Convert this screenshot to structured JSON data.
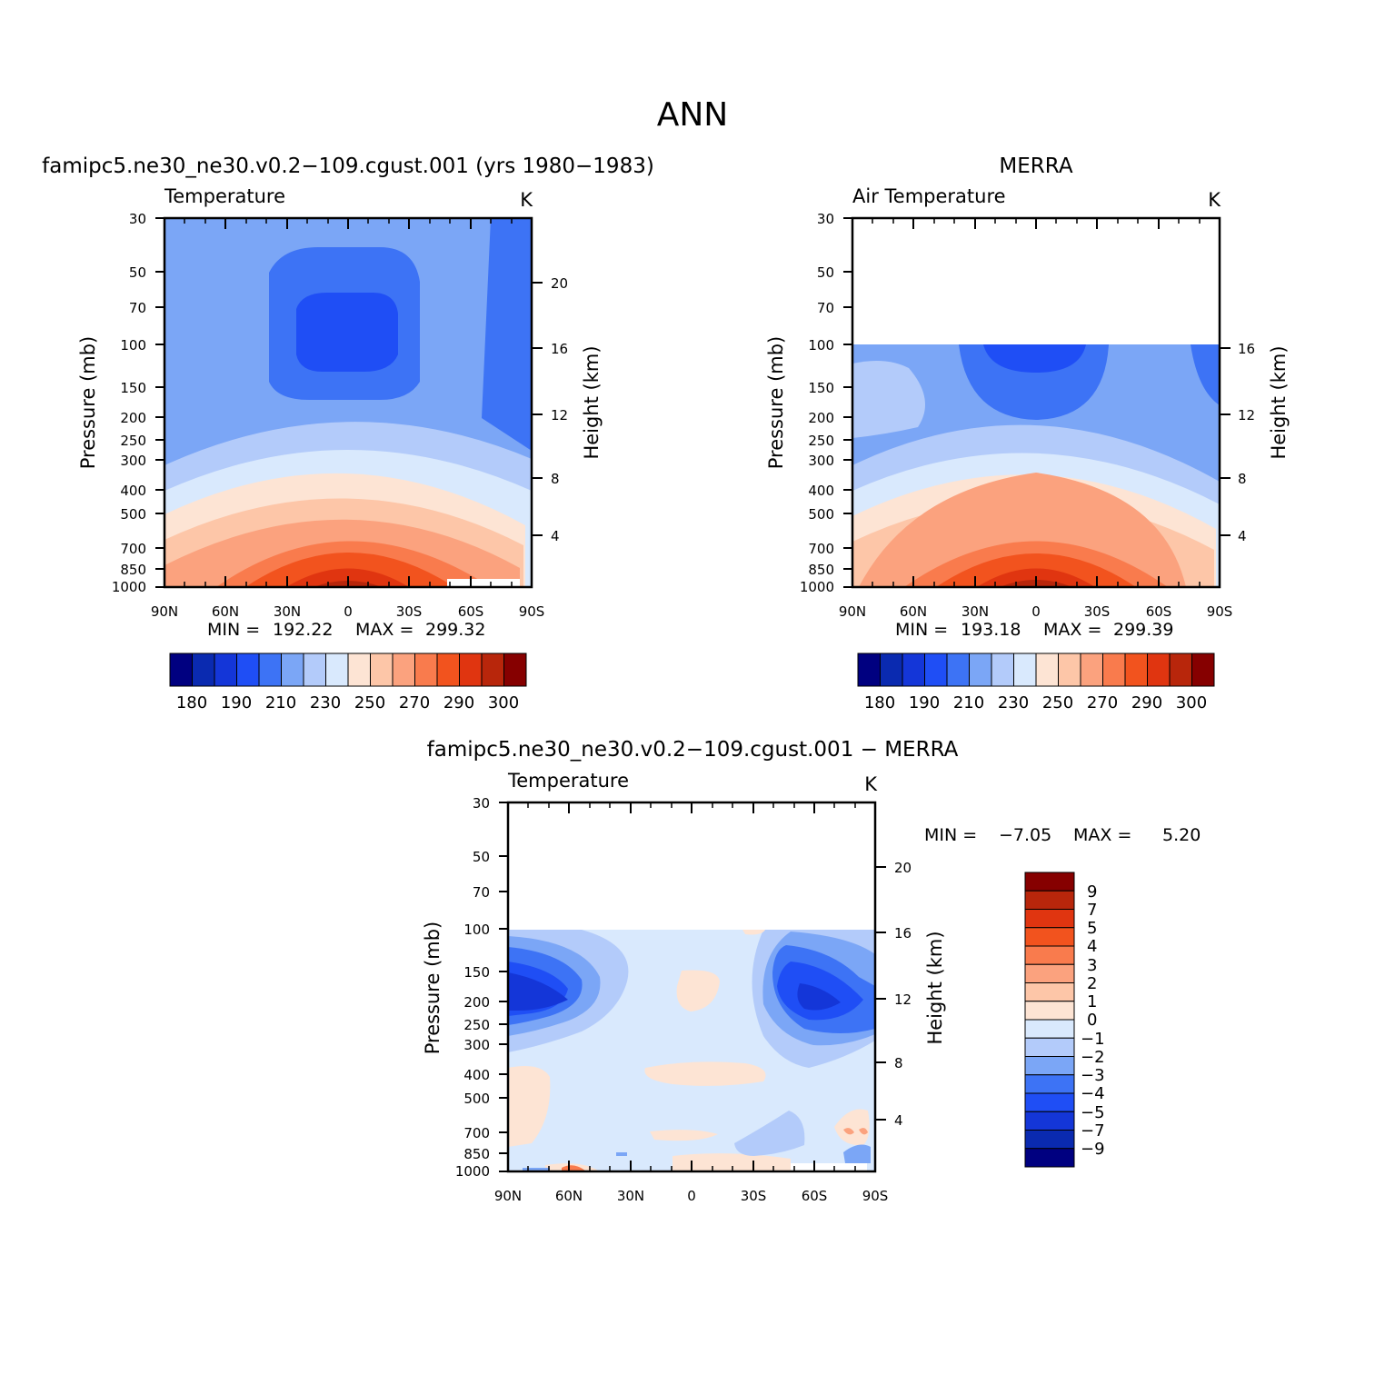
{
  "title": "ANN",
  "colors": {
    "abs_levels": [
      "#000080",
      "#0a2ab0",
      "#1436d8",
      "#1f4ef5",
      "#3d73f5",
      "#7ba6f6",
      "#b3cbfa",
      "#d9e9fd",
      "#fde4d4",
      "#fdc6a8",
      "#fba27e",
      "#f97b4d",
      "#f2531e",
      "#e03510",
      "#b8260b",
      "#860000"
    ],
    "diff_levels": [
      "#000080",
      "#0a2ab0",
      "#1436d8",
      "#1f4ef5",
      "#3d73f5",
      "#7ba6f6",
      "#b3cbfa",
      "#d9e9fd",
      "#fde4d4",
      "#fdc6a8",
      "#fba27e",
      "#f97b4d",
      "#f2531e",
      "#e03510",
      "#b8260b",
      "#860000"
    ]
  },
  "chart_data": [
    {
      "type": "heatmap",
      "subtitle": "famipc5.ne30_ne30.v0.2−109.cgust.001 (yrs 1980−1983)",
      "left_label": "Temperature",
      "units": "K",
      "ylabel": "Pressure (mb)",
      "ylabel_right": "Height (km)",
      "x_ticks": [
        "90N",
        "60N",
        "30N",
        "0",
        "30S",
        "60S",
        "90S"
      ],
      "y_ticks": [
        "30",
        "50",
        "70",
        "100",
        "150",
        "200",
        "250",
        "300",
        "400",
        "500",
        "700",
        "850",
        "1000"
      ],
      "y_ticks_right": [
        "20",
        "16",
        "12",
        "8",
        "4"
      ],
      "min_label": "MIN =",
      "min_value": "192.22",
      "max_label": "MAX =",
      "max_value": "299.32",
      "colorbar_labels": [
        "180",
        "190",
        "210",
        "230",
        "250",
        "270",
        "290",
        "300"
      ],
      "data_top_pressure": 30,
      "min": 192.22,
      "max": 299.32
    },
    {
      "type": "heatmap",
      "subtitle": "MERRA",
      "left_label": "Air Temperature",
      "units": "K",
      "ylabel": "Pressure (mb)",
      "ylabel_right": "Height (km)",
      "x_ticks": [
        "90N",
        "60N",
        "30N",
        "0",
        "30S",
        "60S",
        "90S"
      ],
      "y_ticks": [
        "30",
        "50",
        "70",
        "100",
        "150",
        "200",
        "250",
        "300",
        "400",
        "500",
        "700",
        "850",
        "1000"
      ],
      "y_ticks_right": [
        "16",
        "12",
        "8",
        "4"
      ],
      "min_label": "MIN =",
      "min_value": "193.18",
      "max_label": "MAX =",
      "max_value": "299.39",
      "colorbar_labels": [
        "180",
        "190",
        "210",
        "230",
        "250",
        "270",
        "290",
        "300"
      ],
      "data_top_pressure": 100,
      "min": 193.18,
      "max": 299.39
    },
    {
      "type": "heatmap",
      "subtitle": "famipc5.ne30_ne30.v0.2−109.cgust.001 − MERRA",
      "left_label": "Temperature",
      "units": "K",
      "ylabel": "Pressure (mb)",
      "ylabel_right": "Height (km)",
      "x_ticks": [
        "90N",
        "60N",
        "30N",
        "0",
        "30S",
        "60S",
        "90S"
      ],
      "y_ticks": [
        "30",
        "50",
        "70",
        "100",
        "150",
        "200",
        "250",
        "300",
        "400",
        "500",
        "700",
        "850",
        "1000"
      ],
      "y_ticks_right": [
        "20",
        "16",
        "12",
        "8",
        "4"
      ],
      "min_label": "MIN =",
      "min_value": "−7.05",
      "max_label": "MAX =",
      "max_value": "5.20",
      "colorbar_labels": [
        "9",
        "7",
        "5",
        "4",
        "3",
        "2",
        "1",
        "0",
        "−1",
        "−2",
        "−3",
        "−4",
        "−5",
        "−7",
        "−9"
      ],
      "data_top_pressure": 100,
      "min": -7.05,
      "max": 5.2
    }
  ]
}
